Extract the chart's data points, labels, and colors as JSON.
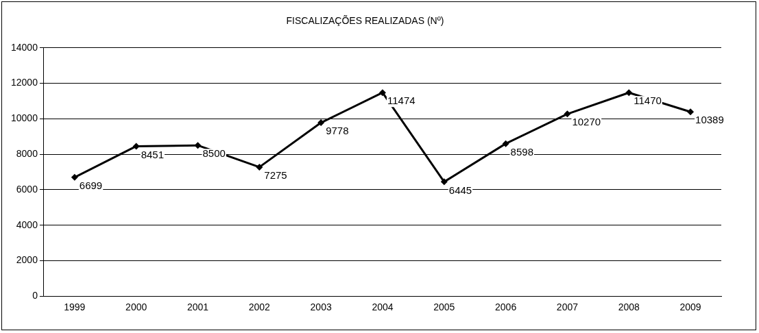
{
  "chart_data": {
    "type": "line",
    "title": "FISCALIZAÇÕES REALIZADAS (Nº)",
    "categories": [
      "1999",
      "2000",
      "2001",
      "2002",
      "2003",
      "2004",
      "2005",
      "2006",
      "2007",
      "2008",
      "2009"
    ],
    "series": [
      {
        "color": "#000000",
        "values": [
          6699,
          8451,
          8500,
          7275,
          9778,
          11474,
          6445,
          8598,
          10270,
          11470,
          10389
        ]
      }
    ],
    "ylim": [
      0,
      14000
    ],
    "yticks": [
      0,
      2000,
      4000,
      6000,
      8000,
      10000,
      12000,
      14000
    ],
    "grid": "y",
    "legend": false,
    "marker": "diamond",
    "line_style": "solid",
    "data_labels": true
  }
}
